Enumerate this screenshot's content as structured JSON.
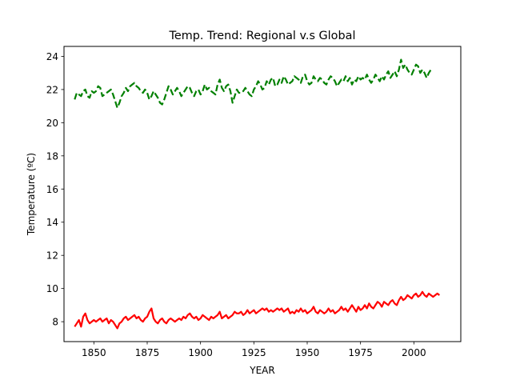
{
  "chart_data": {
    "type": "line",
    "title": "Temp. Trend: Regional v.s Global",
    "xlabel": "YEAR",
    "ylabel": "Temperature (ºC)",
    "xlim": [
      1836,
      2022
    ],
    "ylim": [
      6.8,
      24.6
    ],
    "xticks": [
      1850,
      1875,
      1900,
      1925,
      1950,
      1975,
      2000
    ],
    "yticks": [
      8,
      10,
      12,
      14,
      16,
      18,
      20,
      22,
      24
    ],
    "grid": false,
    "legend": "none",
    "x_start": 1841,
    "series": [
      {
        "color": "#008000",
        "linestyle": "dashed",
        "values": [
          21.4,
          21.8,
          21.7,
          21.6,
          21.9,
          22.0,
          21.6,
          21.5,
          21.9,
          21.8,
          21.9,
          22.2,
          22.1,
          21.6,
          21.7,
          21.8,
          21.9,
          22.0,
          21.7,
          21.3,
          20.9,
          21.2,
          21.6,
          21.8,
          22.1,
          21.9,
          22.2,
          22.3,
          22.4,
          22.2,
          22.1,
          21.9,
          21.8,
          22.0,
          21.8,
          21.4,
          21.6,
          21.9,
          21.7,
          21.5,
          21.2,
          21.1,
          21.4,
          21.8,
          22.2,
          22.0,
          21.7,
          21.9,
          22.1,
          21.9,
          21.6,
          21.8,
          22.0,
          22.2,
          22.1,
          21.8,
          21.6,
          21.9,
          22.0,
          21.7,
          21.9,
          22.3,
          22.0,
          22.1,
          21.9,
          21.8,
          21.7,
          22.3,
          22.6,
          22.1,
          21.9,
          22.2,
          22.3,
          21.9,
          21.2,
          21.6,
          22.0,
          21.8,
          21.8,
          21.9,
          22.1,
          21.9,
          21.7,
          21.6,
          22.0,
          22.2,
          22.5,
          22.3,
          22.0,
          22.1,
          22.5,
          22.3,
          22.6,
          22.7,
          22.2,
          22.3,
          22.6,
          22.4,
          22.8,
          22.6,
          22.3,
          22.4,
          22.5,
          22.8,
          22.7,
          22.6,
          22.4,
          22.8,
          22.9,
          22.5,
          22.3,
          22.4,
          22.8,
          22.6,
          22.5,
          22.7,
          22.6,
          22.4,
          22.3,
          22.6,
          22.8,
          22.7,
          22.5,
          22.2,
          22.4,
          22.6,
          22.5,
          22.8,
          22.5,
          22.7,
          22.3,
          22.6,
          22.5,
          22.8,
          22.6,
          22.7,
          22.6,
          22.9,
          22.6,
          22.4,
          22.6,
          22.9,
          22.7,
          22.5,
          22.8,
          22.6,
          22.9,
          23.1,
          22.7,
          22.9,
          23.1,
          22.8,
          23.2,
          23.8,
          23.3,
          23.5,
          23.2,
          23.0,
          22.9,
          23.2,
          23.5,
          23.4,
          23.0,
          23.2,
          23.0,
          22.7,
          23.0,
          23.2
        ],
        "linewidth": 2.2
      },
      {
        "color": "#ff0000",
        "linestyle": "solid",
        "values": [
          7.7,
          7.9,
          8.1,
          7.7,
          8.3,
          8.5,
          8.1,
          7.9,
          8.0,
          8.1,
          8.0,
          8.1,
          8.2,
          8.0,
          8.1,
          8.2,
          7.9,
          8.1,
          8.0,
          7.8,
          7.6,
          7.9,
          8.0,
          8.2,
          8.3,
          8.1,
          8.2,
          8.3,
          8.4,
          8.2,
          8.3,
          8.1,
          8.0,
          8.2,
          8.3,
          8.6,
          8.8,
          8.2,
          8.0,
          7.9,
          8.1,
          8.2,
          8.0,
          7.9,
          8.1,
          8.2,
          8.1,
          8.0,
          8.1,
          8.2,
          8.1,
          8.3,
          8.2,
          8.4,
          8.5,
          8.3,
          8.2,
          8.3,
          8.1,
          8.2,
          8.4,
          8.3,
          8.2,
          8.1,
          8.3,
          8.2,
          8.3,
          8.4,
          8.6,
          8.2,
          8.3,
          8.4,
          8.2,
          8.3,
          8.4,
          8.6,
          8.5,
          8.5,
          8.6,
          8.4,
          8.5,
          8.7,
          8.5,
          8.6,
          8.7,
          8.5,
          8.6,
          8.7,
          8.8,
          8.7,
          8.8,
          8.6,
          8.7,
          8.6,
          8.7,
          8.8,
          8.7,
          8.8,
          8.6,
          8.7,
          8.8,
          8.5,
          8.6,
          8.5,
          8.7,
          8.6,
          8.8,
          8.6,
          8.7,
          8.5,
          8.6,
          8.7,
          8.9,
          8.6,
          8.5,
          8.7,
          8.6,
          8.5,
          8.6,
          8.8,
          8.6,
          8.7,
          8.5,
          8.6,
          8.7,
          8.9,
          8.7,
          8.8,
          8.6,
          8.8,
          9.0,
          8.8,
          8.6,
          8.9,
          8.7,
          8.8,
          9.0,
          8.8,
          9.1,
          8.9,
          8.8,
          9.0,
          9.2,
          9.1,
          8.9,
          9.2,
          9.1,
          9.0,
          9.2,
          9.3,
          9.1,
          9.0,
          9.3,
          9.5,
          9.3,
          9.4,
          9.6,
          9.5,
          9.4,
          9.6,
          9.7,
          9.5,
          9.6,
          9.8,
          9.6,
          9.5,
          9.7,
          9.6,
          9.5,
          9.6,
          9.7,
          9.6
        ],
        "linewidth": 2.2
      }
    ]
  },
  "style": {
    "background": "#ffffff",
    "axes_color": "#000000"
  }
}
